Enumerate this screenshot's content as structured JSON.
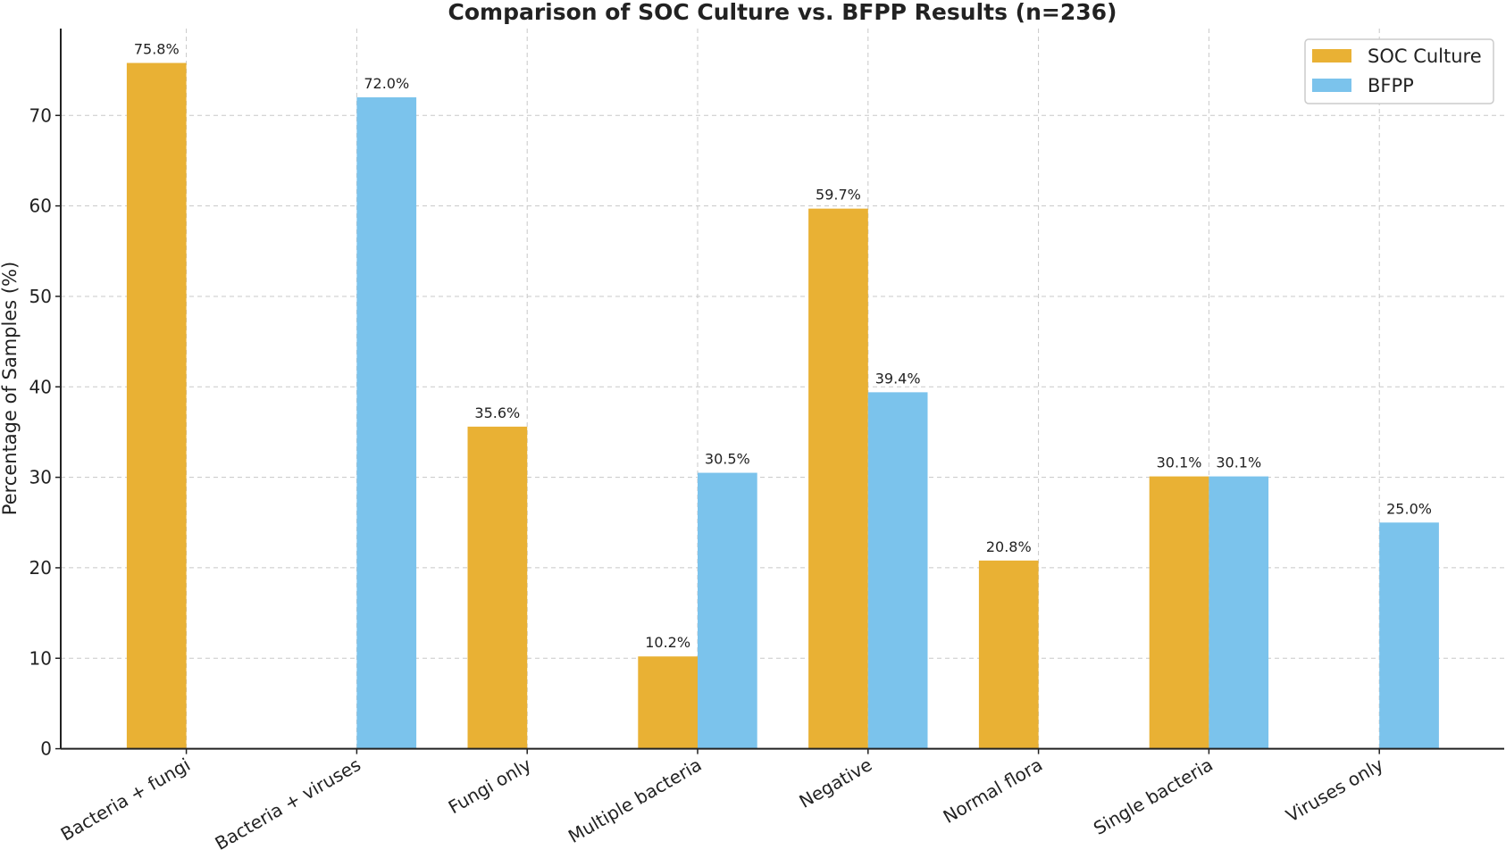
{
  "chart_data": {
    "type": "bar",
    "title": "Comparison of SOC Culture vs. BFPP Results (n=236)",
    "xlabel": "",
    "ylabel": "Percentage of Samples (%)",
    "ylim": [
      0,
      79.6
    ],
    "yticks": [
      0,
      10,
      20,
      30,
      40,
      50,
      60,
      70
    ],
    "grid": true,
    "legend_position": "top-right",
    "categories": [
      "Bacteria + fungi",
      "Bacteria + viruses",
      "Fungi only",
      "Multiple bacteria",
      "Negative",
      "Normal flora",
      "Single bacteria",
      "Viruses only"
    ],
    "series": [
      {
        "name": "SOC Culture",
        "color": "#E9B134",
        "values": [
          75.8,
          0,
          35.6,
          10.2,
          59.7,
          20.8,
          30.1,
          0
        ],
        "labels": [
          "75.8%",
          "",
          "35.6%",
          "10.2%",
          "59.7%",
          "20.8%",
          "30.1%",
          ""
        ]
      },
      {
        "name": "BFPP",
        "color": "#7BC3EC",
        "values": [
          0,
          72.0,
          0,
          30.5,
          39.4,
          0,
          30.1,
          25.0
        ],
        "labels": [
          "",
          "72.0%",
          "",
          "30.5%",
          "39.4%",
          "",
          "30.1%",
          "25.0%"
        ]
      }
    ]
  }
}
